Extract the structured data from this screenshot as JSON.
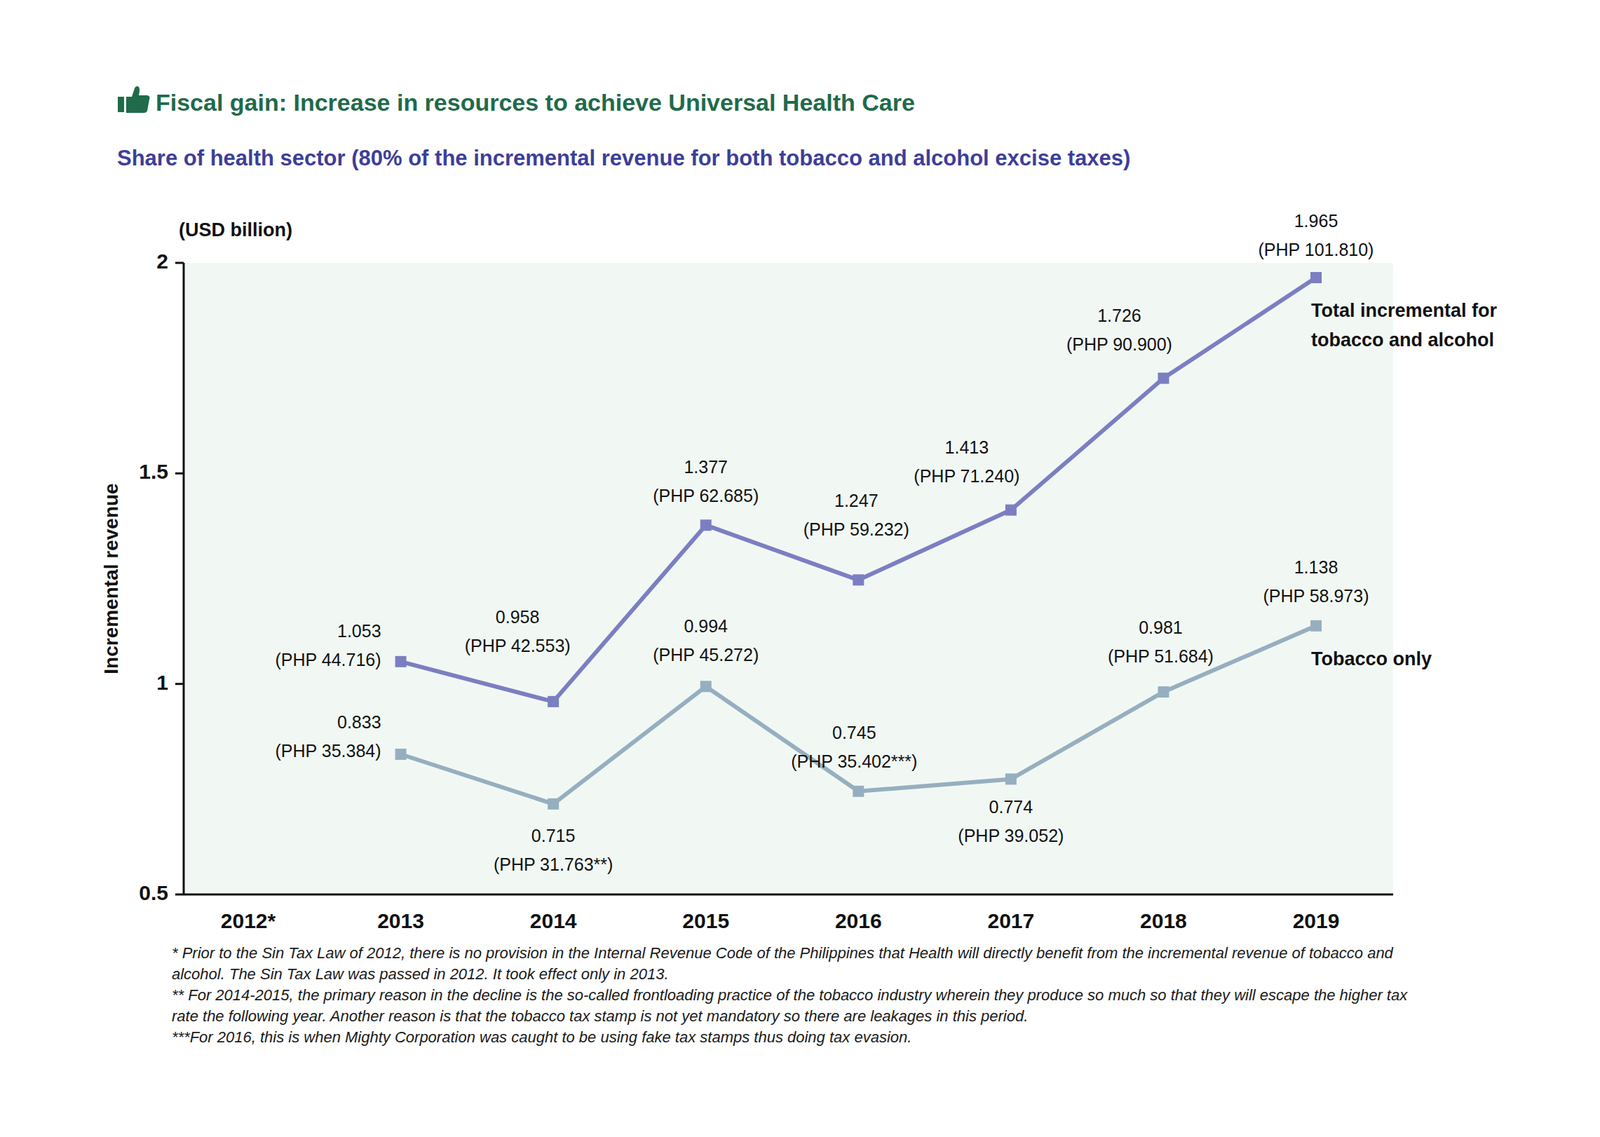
{
  "chart_data": {
    "type": "line",
    "title": "Fiscal gain: Increase in resources to achieve Universal Health Care",
    "subtitle": "Share of health sector (80% of the incremental revenue for both tobacco and alcohol excise taxes)",
    "y_label": "Incremental revenue",
    "y_unit": "(USD billion)",
    "categories": [
      "2012*",
      "2013",
      "2014",
      "2015",
      "2016",
      "2017",
      "2018",
      "2019"
    ],
    "ylim": [
      0.5,
      2
    ],
    "yticks": [
      0.5,
      1,
      1.5,
      2
    ],
    "grid": false,
    "data_labels": true,
    "marker": "square",
    "series": [
      {
        "name": "Total incremental for tobacco and alcohol",
        "color": "#7b7fc2",
        "values": [
          null,
          1.053,
          0.958,
          1.377,
          1.247,
          1.413,
          1.726,
          1.965
        ],
        "php_labels": [
          null,
          "(PHP 44.716)",
          "(PHP 42.553)",
          "(PHP 62.685)",
          "(PHP 59.232)",
          "(PHP 71.240)",
          "(PHP 90.900)",
          "(PHP 101.810)"
        ]
      },
      {
        "name": "Tobacco only",
        "color": "#96afc0",
        "values": [
          null,
          0.833,
          0.715,
          0.994,
          0.745,
          0.774,
          0.981,
          1.138
        ],
        "php_labels": [
          null,
          "(PHP 35.384)",
          "(PHP 31.763**)",
          "(PHP 45.272)",
          "(PHP 35.402***)",
          "(PHP 39.052)",
          "(PHP 51.684)",
          "(PHP 58.973)"
        ]
      }
    ],
    "notes": [
      "* Prior to the Sin Tax Law of 2012, there is no provision in the Internal Revenue Code of the Philippines that Health will directly benefit from the incremental revenue of tobacco and alcohol. The Sin Tax Law was passed in 2012. It took effect only in 2013.",
      "** For 2014-2015, the primary reason in the decline is the so-called frontloading practice of the tobacco industry wherein they produce so much so that they will escape the higher tax rate the following year. Another reason is that the tobacco tax stamp is not yet mandatory so there are leakages in this period.",
      "***For 2016, this is when Mighty Corporation was caught to be using fake tax stamps thus doing tax evasion."
    ]
  }
}
